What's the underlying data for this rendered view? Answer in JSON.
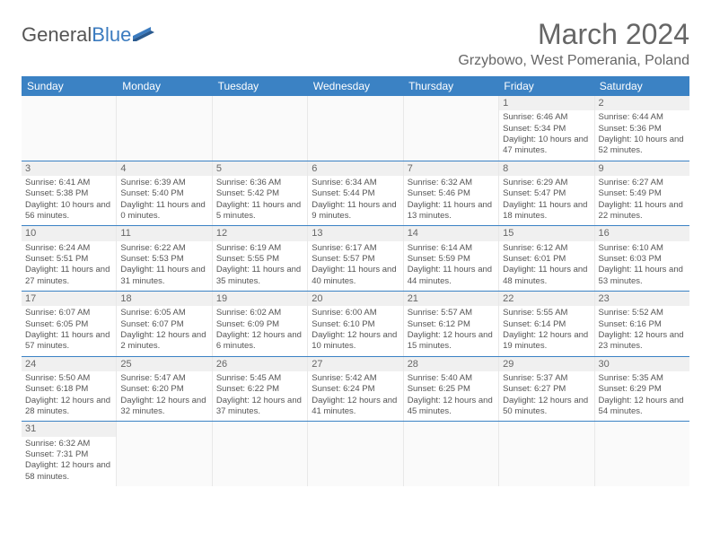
{
  "logo": {
    "text1": "General",
    "text2": "Blue"
  },
  "title": "March 2024",
  "location": "Grzybowo, West Pomerania, Poland",
  "colors": {
    "header_bg": "#3b82c4",
    "header_text": "#ffffff",
    "text": "#555555",
    "title_text": "#666666",
    "divider": "#3b82c4",
    "daynum_bg": "#f0f0f0"
  },
  "fonts": {
    "title_size": 32,
    "location_size": 16,
    "dayheader_size": 12,
    "cell_size": 10
  },
  "day_names": [
    "Sunday",
    "Monday",
    "Tuesday",
    "Wednesday",
    "Thursday",
    "Friday",
    "Saturday"
  ],
  "weeks": [
    [
      null,
      null,
      null,
      null,
      null,
      {
        "n": "1",
        "sr": "Sunrise: 6:46 AM",
        "ss": "Sunset: 5:34 PM",
        "dl": "Daylight: 10 hours and 47 minutes."
      },
      {
        "n": "2",
        "sr": "Sunrise: 6:44 AM",
        "ss": "Sunset: 5:36 PM",
        "dl": "Daylight: 10 hours and 52 minutes."
      }
    ],
    [
      {
        "n": "3",
        "sr": "Sunrise: 6:41 AM",
        "ss": "Sunset: 5:38 PM",
        "dl": "Daylight: 10 hours and 56 minutes."
      },
      {
        "n": "4",
        "sr": "Sunrise: 6:39 AM",
        "ss": "Sunset: 5:40 PM",
        "dl": "Daylight: 11 hours and 0 minutes."
      },
      {
        "n": "5",
        "sr": "Sunrise: 6:36 AM",
        "ss": "Sunset: 5:42 PM",
        "dl": "Daylight: 11 hours and 5 minutes."
      },
      {
        "n": "6",
        "sr": "Sunrise: 6:34 AM",
        "ss": "Sunset: 5:44 PM",
        "dl": "Daylight: 11 hours and 9 minutes."
      },
      {
        "n": "7",
        "sr": "Sunrise: 6:32 AM",
        "ss": "Sunset: 5:46 PM",
        "dl": "Daylight: 11 hours and 13 minutes."
      },
      {
        "n": "8",
        "sr": "Sunrise: 6:29 AM",
        "ss": "Sunset: 5:47 PM",
        "dl": "Daylight: 11 hours and 18 minutes."
      },
      {
        "n": "9",
        "sr": "Sunrise: 6:27 AM",
        "ss": "Sunset: 5:49 PM",
        "dl": "Daylight: 11 hours and 22 minutes."
      }
    ],
    [
      {
        "n": "10",
        "sr": "Sunrise: 6:24 AM",
        "ss": "Sunset: 5:51 PM",
        "dl": "Daylight: 11 hours and 27 minutes."
      },
      {
        "n": "11",
        "sr": "Sunrise: 6:22 AM",
        "ss": "Sunset: 5:53 PM",
        "dl": "Daylight: 11 hours and 31 minutes."
      },
      {
        "n": "12",
        "sr": "Sunrise: 6:19 AM",
        "ss": "Sunset: 5:55 PM",
        "dl": "Daylight: 11 hours and 35 minutes."
      },
      {
        "n": "13",
        "sr": "Sunrise: 6:17 AM",
        "ss": "Sunset: 5:57 PM",
        "dl": "Daylight: 11 hours and 40 minutes."
      },
      {
        "n": "14",
        "sr": "Sunrise: 6:14 AM",
        "ss": "Sunset: 5:59 PM",
        "dl": "Daylight: 11 hours and 44 minutes."
      },
      {
        "n": "15",
        "sr": "Sunrise: 6:12 AM",
        "ss": "Sunset: 6:01 PM",
        "dl": "Daylight: 11 hours and 48 minutes."
      },
      {
        "n": "16",
        "sr": "Sunrise: 6:10 AM",
        "ss": "Sunset: 6:03 PM",
        "dl": "Daylight: 11 hours and 53 minutes."
      }
    ],
    [
      {
        "n": "17",
        "sr": "Sunrise: 6:07 AM",
        "ss": "Sunset: 6:05 PM",
        "dl": "Daylight: 11 hours and 57 minutes."
      },
      {
        "n": "18",
        "sr": "Sunrise: 6:05 AM",
        "ss": "Sunset: 6:07 PM",
        "dl": "Daylight: 12 hours and 2 minutes."
      },
      {
        "n": "19",
        "sr": "Sunrise: 6:02 AM",
        "ss": "Sunset: 6:09 PM",
        "dl": "Daylight: 12 hours and 6 minutes."
      },
      {
        "n": "20",
        "sr": "Sunrise: 6:00 AM",
        "ss": "Sunset: 6:10 PM",
        "dl": "Daylight: 12 hours and 10 minutes."
      },
      {
        "n": "21",
        "sr": "Sunrise: 5:57 AM",
        "ss": "Sunset: 6:12 PM",
        "dl": "Daylight: 12 hours and 15 minutes."
      },
      {
        "n": "22",
        "sr": "Sunrise: 5:55 AM",
        "ss": "Sunset: 6:14 PM",
        "dl": "Daylight: 12 hours and 19 minutes."
      },
      {
        "n": "23",
        "sr": "Sunrise: 5:52 AM",
        "ss": "Sunset: 6:16 PM",
        "dl": "Daylight: 12 hours and 23 minutes."
      }
    ],
    [
      {
        "n": "24",
        "sr": "Sunrise: 5:50 AM",
        "ss": "Sunset: 6:18 PM",
        "dl": "Daylight: 12 hours and 28 minutes."
      },
      {
        "n": "25",
        "sr": "Sunrise: 5:47 AM",
        "ss": "Sunset: 6:20 PM",
        "dl": "Daylight: 12 hours and 32 minutes."
      },
      {
        "n": "26",
        "sr": "Sunrise: 5:45 AM",
        "ss": "Sunset: 6:22 PM",
        "dl": "Daylight: 12 hours and 37 minutes."
      },
      {
        "n": "27",
        "sr": "Sunrise: 5:42 AM",
        "ss": "Sunset: 6:24 PM",
        "dl": "Daylight: 12 hours and 41 minutes."
      },
      {
        "n": "28",
        "sr": "Sunrise: 5:40 AM",
        "ss": "Sunset: 6:25 PM",
        "dl": "Daylight: 12 hours and 45 minutes."
      },
      {
        "n": "29",
        "sr": "Sunrise: 5:37 AM",
        "ss": "Sunset: 6:27 PM",
        "dl": "Daylight: 12 hours and 50 minutes."
      },
      {
        "n": "30",
        "sr": "Sunrise: 5:35 AM",
        "ss": "Sunset: 6:29 PM",
        "dl": "Daylight: 12 hours and 54 minutes."
      }
    ],
    [
      {
        "n": "31",
        "sr": "Sunrise: 6:32 AM",
        "ss": "Sunset: 7:31 PM",
        "dl": "Daylight: 12 hours and 58 minutes."
      },
      null,
      null,
      null,
      null,
      null,
      null
    ]
  ]
}
